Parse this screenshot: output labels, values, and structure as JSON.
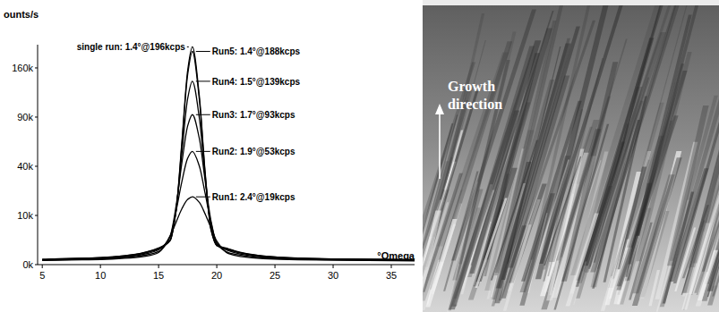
{
  "chart_data": {
    "type": "line",
    "y_label": "ounts/s",
    "x_label": "°Omega",
    "color": "#000000",
    "grid": false,
    "x": [
      5,
      6,
      9,
      11,
      13,
      14,
      15,
      16,
      16.5,
      17,
      17.5,
      17.9,
      18.5,
      19,
      19.5,
      20,
      21,
      22,
      24,
      27,
      31,
      37
    ],
    "xlim": [
      4.6,
      37
    ],
    "xticks": [
      5,
      10,
      15,
      20,
      25,
      30,
      35
    ],
    "ylim": [
      0,
      200000
    ],
    "yticks": [
      {
        "value": 0,
        "label": "0k"
      },
      {
        "value": 10000,
        "label": "10k"
      },
      {
        "value": 40000,
        "label": "40k"
      },
      {
        "value": 90000,
        "label": "90k"
      },
      {
        "value": 160000,
        "label": "160k"
      }
    ],
    "series": [
      {
        "name": "Run1: 2.4°@19kcps",
        "values": [
          70,
          80,
          100,
          130,
          200,
          300,
          600,
          3400,
          7400,
          12900,
          17600,
          19000,
          16000,
          10600,
          5600,
          2300,
          500,
          280,
          150,
          100,
          80,
          60
        ]
      },
      {
        "name": "Run2: 1.9°@53kcps",
        "values": [
          80,
          90,
          120,
          160,
          260,
          400,
          700,
          3300,
          11800,
          28500,
          46900,
          53000,
          40200,
          20900,
          7400,
          1800,
          600,
          380,
          190,
          120,
          90,
          70
        ]
      },
      {
        "name": "Run3: 1.7°@93kcps",
        "values": [
          90,
          100,
          140,
          190,
          320,
          500,
          900,
          3500,
          14200,
          42800,
          79700,
          93000,
          65900,
          29100,
          8000,
          1900,
          800,
          470,
          230,
          140,
          100,
          80
        ]
      },
      {
        "name": "Run4: 1.5°@139kcps",
        "values": [
          100,
          120,
          160,
          220,
          380,
          600,
          1000,
          2600,
          12400,
          51200,
          114100,
          139000,
          89100,
          31300,
          5900,
          1500,
          900,
          560,
          270,
          160,
          110,
          90
        ]
      },
      {
        "name": "Run5: 1.4°@188kcps",
        "values": [
          110,
          130,
          170,
          240,
          420,
          650,
          1100,
          2400,
          11700,
          59700,
          149800,
          188000,
          112900,
          33900,
          5000,
          1500,
          1000,
          600,
          300,
          170,
          120,
          100
        ]
      },
      {
        "name": "single run: 1.4°@196kcps",
        "values": [
          110,
          130,
          180,
          250,
          440,
          680,
          1150,
          2500,
          12200,
          62300,
          156200,
          196000,
          117700,
          35400,
          5200,
          1600,
          1040,
          630,
          310,
          180,
          130,
          100
        ]
      }
    ]
  },
  "photo": {
    "label": "Growth direction"
  }
}
